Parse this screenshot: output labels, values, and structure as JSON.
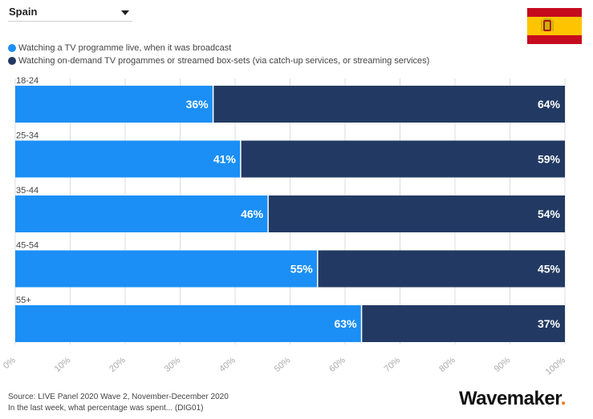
{
  "filter": {
    "selected": "Spain"
  },
  "flag_icon": "spain-flag",
  "colors": {
    "live": "#1b8ff5",
    "ondemand": "#223a63",
    "grid": "#dddddd",
    "tick": "#aaaaaa",
    "brand_accent": "#f26b21"
  },
  "legend": [
    {
      "label": "Watching a TV programme live, when it was broadcast",
      "color": "#1b8ff5"
    },
    {
      "label": "Watching on-demand TV progammes or streamed box-sets (via catch-up services, or streaming services)",
      "color": "#223a63"
    }
  ],
  "chart_data": {
    "type": "bar",
    "orientation": "horizontal",
    "stacked": true,
    "categories": [
      "18-24",
      "25-34",
      "35-44",
      "45-54",
      "55+"
    ],
    "series": [
      {
        "name": "Watching a TV programme live, when it was broadcast",
        "values": [
          36,
          41,
          46,
          55,
          63
        ],
        "labels": [
          "36%",
          "41%",
          "46%",
          "55%",
          "63%"
        ]
      },
      {
        "name": "Watching on-demand TV progammes or streamed box-sets (via catch-up services, or streaming services)",
        "values": [
          64,
          59,
          54,
          45,
          37
        ],
        "labels": [
          "64%",
          "59%",
          "54%",
          "45%",
          "37%"
        ]
      }
    ],
    "xlim": [
      0,
      100
    ],
    "x_ticks": [
      "0%",
      "10%",
      "20%",
      "30%",
      "40%",
      "50%",
      "60%",
      "70%",
      "80%",
      "90%",
      "100%"
    ],
    "grid": true,
    "legend_position": "top-left"
  },
  "footer": {
    "source": "Source: LIVE Panel 2020 Wave 2, November-December 2020",
    "question": "In the last week, what percentage was spent... (DIG01)"
  },
  "brand": {
    "name": "Wavemaker",
    "dot": "."
  }
}
